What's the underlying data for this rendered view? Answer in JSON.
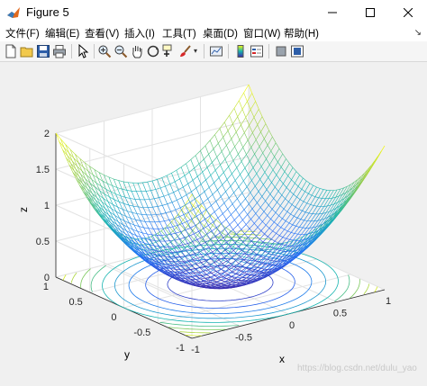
{
  "window": {
    "title": "Figure 5"
  },
  "menu": [
    {
      "label": "文件(F)"
    },
    {
      "label": "编辑(E)"
    },
    {
      "label": "查看(V)"
    },
    {
      "label": "插入(I)"
    },
    {
      "label": "工具(T)"
    },
    {
      "label": "桌面(D)"
    },
    {
      "label": "窗口(W)"
    },
    {
      "label": "帮助(H)"
    }
  ],
  "toolbar": {
    "icons": [
      "new-file-icon",
      "open-folder-icon",
      "save-icon",
      "print-icon",
      "pointer-arrow-icon",
      "zoom-in-icon",
      "zoom-out-icon",
      "pan-hand-icon",
      "rotate-3d-icon",
      "data-cursor-icon",
      "brush-icon",
      "link-plot-icon",
      "colorbar-icon",
      "legend-icon",
      "hide-plot-tools-icon",
      "show-plot-tools-icon"
    ]
  },
  "chart_data": {
    "type": "surface-mesh",
    "function": "z = x^2 + y^2",
    "xlabel": "x",
    "ylabel": "y",
    "zlabel": "z",
    "xlim": [
      -1,
      1
    ],
    "ylim": [
      -1,
      1
    ],
    "zlim": [
      0,
      2
    ],
    "xticks": [
      "-1",
      "-0.5",
      "0",
      "0.5",
      "1"
    ],
    "yticks": [
      "-1",
      "-0.5",
      "0",
      "0.5",
      "1"
    ],
    "zticks": [
      "0",
      "0.5",
      "1",
      "1.5",
      "2"
    ],
    "contour_levels": [
      0.2,
      0.4,
      0.6,
      0.8,
      1.0,
      1.2,
      1.4,
      1.6,
      1.8
    ],
    "colormap": "parula",
    "grid": true,
    "view": "3d-default"
  },
  "watermark": "https://blog.csdn.net/dulu_yao"
}
